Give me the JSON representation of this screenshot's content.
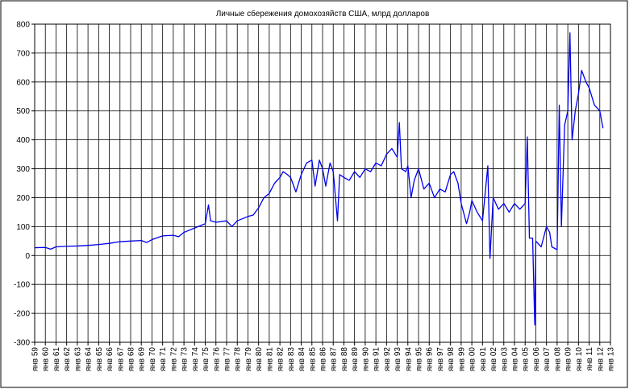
{
  "chart_data": {
    "type": "line",
    "title": "Личные сбережения домохозяйств США, млрд долларов",
    "series": [
      {
        "color": "#0000ee",
        "x": [
          1959,
          1960,
          1960.5,
          1961,
          1962,
          1963,
          1964,
          1965,
          1966,
          1967,
          1968,
          1969,
          1969.5,
          1970,
          1971,
          1972,
          1972.5,
          1973,
          1974,
          1975,
          1975.3,
          1975.5,
          1976,
          1977,
          1977.5,
          1978,
          1979,
          1979.5,
          1980,
          1980.5,
          1981,
          1981.5,
          1982,
          1982.3,
          1982.7,
          1983,
          1983.5,
          1984,
          1984.5,
          1985,
          1985.3,
          1985.7,
          1986,
          1986.3,
          1986.7,
          1987,
          1987.4,
          1987.6,
          1988,
          1988.5,
          1989,
          1989.5,
          1990,
          1990.5,
          1991,
          1991.5,
          1992,
          1992.5,
          1993,
          1993.2,
          1993.4,
          1993.8,
          1994,
          1994.3,
          1994.6,
          1995,
          1995.5,
          1996,
          1996.5,
          1997,
          1997.5,
          1998,
          1998.3,
          1998.7,
          1999,
          1999.5,
          1999.8,
          2000,
          2000.5,
          2001,
          2001.5,
          2001.7,
          2002,
          2002.5,
          2003,
          2003.5,
          2004,
          2004.5,
          2005,
          2005.2,
          2005.4,
          2005.7,
          2005.9,
          2006,
          2006.5,
          2007,
          2007.3,
          2007.5,
          2008,
          2008.2,
          2008.4,
          2008.7,
          2009,
          2009.2,
          2009.4,
          2009.7,
          2010,
          2010.3,
          2010.7,
          2011,
          2011.5,
          2012,
          2012.3
        ],
        "values": [
          27,
          28,
          22,
          30,
          32,
          33,
          35,
          38,
          42,
          48,
          50,
          52,
          45,
          55,
          68,
          70,
          65,
          80,
          95,
          110,
          175,
          120,
          115,
          120,
          100,
          120,
          135,
          140,
          165,
          200,
          215,
          250,
          270,
          290,
          280,
          270,
          220,
          280,
          320,
          330,
          240,
          330,
          300,
          240,
          320,
          290,
          120,
          280,
          270,
          260,
          290,
          270,
          300,
          290,
          320,
          310,
          350,
          370,
          340,
          460,
          300,
          290,
          310,
          200,
          260,
          300,
          230,
          250,
          200,
          230,
          220,
          280,
          290,
          250,
          180,
          110,
          150,
          190,
          150,
          120,
          310,
          -10,
          200,
          160,
          180,
          150,
          180,
          160,
          180,
          410,
          60,
          60,
          -240,
          50,
          30,
          100,
          80,
          30,
          20,
          520,
          100,
          450,
          500,
          770,
          400,
          500,
          560,
          640,
          600,
          580,
          520,
          500,
          440
        ]
      }
    ],
    "xlim": [
      1959,
      2013
    ],
    "xticks": [
      {
        "value": 1959,
        "label": "янв 59"
      },
      {
        "value": 1960,
        "label": "янв 60"
      },
      {
        "value": 1961,
        "label": "янв 61"
      },
      {
        "value": 1962,
        "label": "янв 62"
      },
      {
        "value": 1963,
        "label": "янв 63"
      },
      {
        "value": 1964,
        "label": "янв 64"
      },
      {
        "value": 1965,
        "label": "янв 65"
      },
      {
        "value": 1966,
        "label": "янв 66"
      },
      {
        "value": 1967,
        "label": "янв 67"
      },
      {
        "value": 1968,
        "label": "янв 68"
      },
      {
        "value": 1969,
        "label": "янв 69"
      },
      {
        "value": 1970,
        "label": "янв 70"
      },
      {
        "value": 1971,
        "label": "янв 71"
      },
      {
        "value": 1972,
        "label": "янв 72"
      },
      {
        "value": 1973,
        "label": "янв 73"
      },
      {
        "value": 1974,
        "label": "янв 74"
      },
      {
        "value": 1975,
        "label": "янв 75"
      },
      {
        "value": 1976,
        "label": "янв 76"
      },
      {
        "value": 1977,
        "label": "янв 77"
      },
      {
        "value": 1978,
        "label": "янв 78"
      },
      {
        "value": 1979,
        "label": "янв 79"
      },
      {
        "value": 1980,
        "label": "янв 80"
      },
      {
        "value": 1981,
        "label": "янв 81"
      },
      {
        "value": 1982,
        "label": "янв 82"
      },
      {
        "value": 1983,
        "label": "янв 83"
      },
      {
        "value": 1984,
        "label": "янв 84"
      },
      {
        "value": 1985,
        "label": "янв 85"
      },
      {
        "value": 1986,
        "label": "янв 86"
      },
      {
        "value": 1987,
        "label": "янв 87"
      },
      {
        "value": 1988,
        "label": "янв 88"
      },
      {
        "value": 1989,
        "label": "янв 89"
      },
      {
        "value": 1990,
        "label": "янв 90"
      },
      {
        "value": 1991,
        "label": "янв 91"
      },
      {
        "value": 1992,
        "label": "янв 92"
      },
      {
        "value": 1993,
        "label": "янв 93"
      },
      {
        "value": 1994,
        "label": "янв 94"
      },
      {
        "value": 1995,
        "label": "янв 95"
      },
      {
        "value": 1996,
        "label": "янв 96"
      },
      {
        "value": 1997,
        "label": "янв 97"
      },
      {
        "value": 1998,
        "label": "янв 98"
      },
      {
        "value": 1999,
        "label": "янв 99"
      },
      {
        "value": 2000,
        "label": "янв 00"
      },
      {
        "value": 2001,
        "label": "янв 01"
      },
      {
        "value": 2002,
        "label": "янв 02"
      },
      {
        "value": 2003,
        "label": "янв 03"
      },
      {
        "value": 2004,
        "label": "янв 04"
      },
      {
        "value": 2005,
        "label": "янв 05"
      },
      {
        "value": 2006,
        "label": "янв 06"
      },
      {
        "value": 2007,
        "label": "янв 07"
      },
      {
        "value": 2008,
        "label": "янв 08"
      },
      {
        "value": 2009,
        "label": "янв 09"
      },
      {
        "value": 2010,
        "label": "янв 10"
      },
      {
        "value": 2011,
        "label": "янв 11"
      },
      {
        "value": 2012,
        "label": "янв 12"
      },
      {
        "value": 2013,
        "label": "янв 13"
      }
    ],
    "ylim": [
      -300,
      800
    ],
    "yticks": [
      -300,
      -200,
      -100,
      0,
      100,
      200,
      300,
      400,
      500,
      600,
      700,
      800
    ],
    "grid": true
  }
}
